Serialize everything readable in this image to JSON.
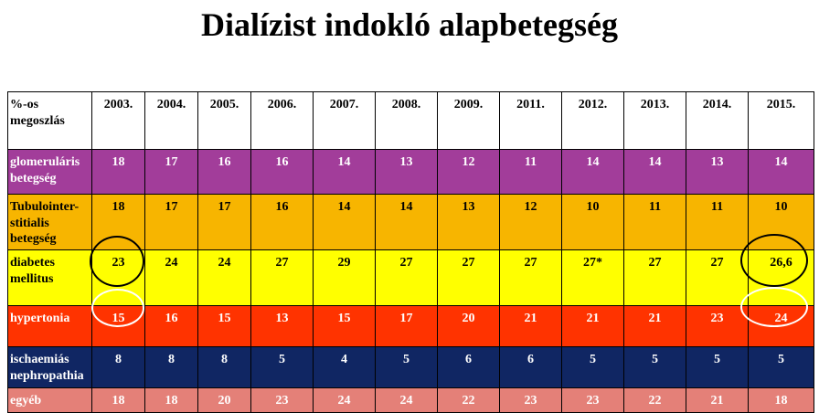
{
  "title": "Dialízist indokló alapbetegség",
  "header": {
    "label": "%-os megoszlás",
    "years": [
      "2003.",
      "2004.",
      "2005.",
      "2006.",
      "2007.",
      "2008.",
      "2009.",
      "2011.",
      "2012.",
      "2013.",
      "2014.",
      "2015."
    ]
  },
  "rows": [
    {
      "key": "glom",
      "label": "glomeruláris betegség",
      "values": [
        "18",
        "17",
        "16",
        "16",
        "14",
        "13",
        "12",
        "11",
        "14",
        "14",
        "13",
        "14"
      ],
      "bg": "#a23d9a"
    },
    {
      "key": "tub",
      "label": "Tubulointer-stitialis betegség",
      "values": [
        "18",
        "17",
        "17",
        "16",
        "14",
        "14",
        "13",
        "12",
        "10",
        "11",
        "11",
        "10"
      ],
      "bg": "#f7b500"
    },
    {
      "key": "dia",
      "label": "diabetes mellitus",
      "values": [
        "23",
        "24",
        "24",
        "27",
        "29",
        "27",
        "27",
        "27",
        "27*",
        "27",
        "27",
        "26,6"
      ],
      "bg": "#ffff00"
    },
    {
      "key": "hyp",
      "label": "hypertonia",
      "values": [
        "15",
        "16",
        "15",
        "13",
        "15",
        "17",
        "20",
        "21",
        "21",
        "21",
        "23",
        "24"
      ],
      "bg": "#ff3300"
    },
    {
      "key": "isch",
      "label": "ischaemiás nephropathia",
      "values": [
        "8",
        "8",
        "8",
        "5",
        "4",
        "5",
        "6",
        "6",
        "5",
        "5",
        "5",
        "5"
      ],
      "bg": "#102663"
    },
    {
      "key": "egy",
      "label": "egyéb",
      "values": [
        "18",
        "18",
        "20",
        "23",
        "24",
        "24",
        "22",
        "23",
        "23",
        "22",
        "21",
        "18"
      ],
      "bg": "#e48078"
    }
  ],
  "annotations": {
    "circle_colors": {
      "diabetes": "#000000",
      "hypertonia": "#ffffff"
    }
  }
}
